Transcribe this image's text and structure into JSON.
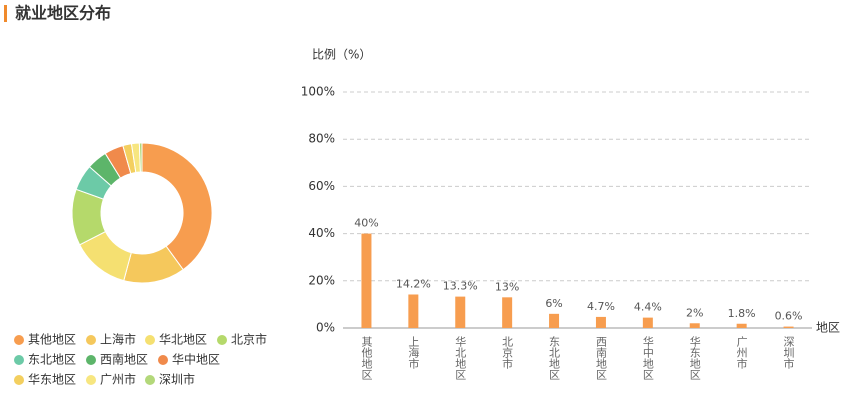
{
  "title": "就业地区分布",
  "chart_data": [
    {
      "type": "pie",
      "donut": true,
      "categories": [
        "其他地区",
        "上海市",
        "华北地区",
        "北京市",
        "东北地区",
        "西南地区",
        "华中地区",
        "华东地区",
        "广州市",
        "深圳市"
      ],
      "values": [
        40,
        14.2,
        13.3,
        13,
        6,
        4.7,
        4.4,
        2,
        1.8,
        0.6
      ],
      "colors": [
        "#f79d4f",
        "#f5c85c",
        "#f5e071",
        "#b5d96b",
        "#6ccaa7",
        "#5db56a",
        "#f08a4b",
        "#f3cf5f",
        "#f7e680",
        "#b3d87a"
      ]
    },
    {
      "type": "bar",
      "y_label": "比例（%）",
      "x_label": "地区",
      "categories": [
        "其他地区",
        "上海市",
        "华北地区",
        "北京市",
        "东北地区",
        "西南地区",
        "华中地区",
        "华东地区",
        "广州市",
        "深圳市"
      ],
      "values": [
        40,
        14.2,
        13.3,
        13,
        6,
        4.7,
        4.4,
        2,
        1.8,
        0.6
      ],
      "value_labels": [
        "40%",
        "14.2%",
        "13.3%",
        "13%",
        "6%",
        "4.7%",
        "4.4%",
        "2%",
        "1.8%",
        "0.6%"
      ],
      "color": "#f79d4f",
      "ylim": [
        0,
        100
      ],
      "yticks": [
        {
          "value": 0,
          "label": "0%"
        },
        {
          "value": 20,
          "label": "20%"
        },
        {
          "value": 40,
          "label": "40%"
        },
        {
          "value": 60,
          "label": "60%"
        },
        {
          "value": 80,
          "label": "80%"
        },
        {
          "value": 100,
          "label": "100%"
        }
      ],
      "grid": true
    }
  ]
}
